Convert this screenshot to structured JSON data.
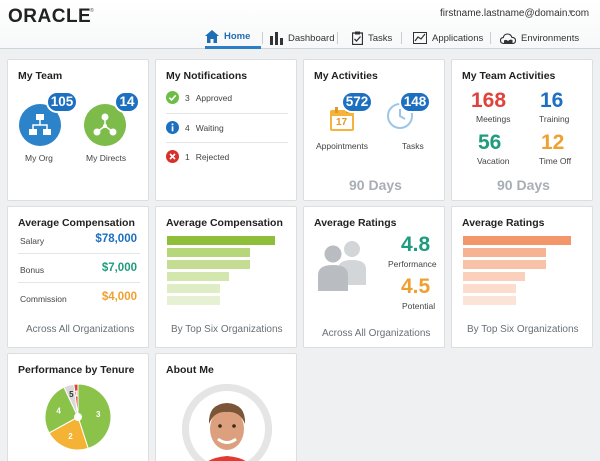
{
  "header": {
    "logo": "ORACLE",
    "logo_tm": "®",
    "user_email": "firstname.lastname@domain.com",
    "nav": [
      {
        "label": "Home",
        "icon": "home-icon",
        "active": true
      },
      {
        "label": "Dashboard",
        "icon": "bar-chart-icon",
        "active": false
      },
      {
        "label": "Tasks",
        "icon": "clipboard-icon",
        "active": false
      },
      {
        "label": "Applications",
        "icon": "chart-window-icon",
        "active": false
      },
      {
        "label": "Environments",
        "icon": "cloud-icon",
        "active": false
      }
    ]
  },
  "my_team": {
    "title": "My Team",
    "org_label": "My Org",
    "org_count": "105",
    "directs_label": "My Directs",
    "directs_count": "14"
  },
  "notifications": {
    "title": "My Notifications",
    "items": [
      {
        "count": "3",
        "label": "Approved",
        "status": "approved"
      },
      {
        "count": "4",
        "label": "Waiting",
        "status": "waiting"
      },
      {
        "count": "1",
        "label": "Rejected",
        "status": "rejected"
      }
    ]
  },
  "activities": {
    "title": "My Activities",
    "appointments_label": "Appointments",
    "appointments_count": "572",
    "calendar_day": "17",
    "tasks_label": "Tasks",
    "tasks_count": "148",
    "period": "90 Days"
  },
  "team_activities": {
    "title": "My Team Activities",
    "meetings": "168",
    "meetings_label": "Meetings",
    "training": "16",
    "training_label": "Training",
    "vacation": "56",
    "vacation_label": "Vacation",
    "timeoff": "12",
    "timeoff_label": "Time Off",
    "period": "90 Days"
  },
  "avg_comp_1": {
    "title": "Average Compensation",
    "rows": [
      {
        "label": "Salary",
        "value": "$78,000"
      },
      {
        "label": "Bonus",
        "value": "$7,000"
      },
      {
        "label": "Commission",
        "value": "$4,000"
      }
    ],
    "footer": "Across All Organizations"
  },
  "avg_comp_2": {
    "title": "Average Compensation",
    "bars": [
      1.0,
      0.77,
      0.77,
      0.57,
      0.49,
      0.49
    ],
    "footer": "By Top Six Organizations"
  },
  "avg_ratings_1": {
    "title": "Average Ratings",
    "performance": "4.8",
    "performance_label": "Performance",
    "potential": "4.5",
    "potential_label": "Potential",
    "footer": "Across All Organizations"
  },
  "avg_ratings_2": {
    "title": "Average Ratings",
    "bars": [
      1.0,
      0.77,
      0.77,
      0.57,
      0.49,
      0.49
    ],
    "footer": "By Top Six Organizations"
  },
  "tenure": {
    "title": "Performance by Tenure",
    "slices": [
      {
        "label": "3",
        "value": 45,
        "color": "#8bc34a"
      },
      {
        "label": "2",
        "value": 22,
        "color": "#f5b335"
      },
      {
        "label": "4",
        "value": 26,
        "color": "#8bc34a"
      },
      {
        "label": "5",
        "value": 5,
        "color": "#d9d9d9"
      },
      {
        "label": "1",
        "value": 2,
        "color": "#e0433b"
      }
    ]
  },
  "about": {
    "title": "About Me"
  },
  "colors": {
    "blue": "#1d6fc0",
    "red": "#e0433b",
    "teal": "#1f9c7d",
    "orange": "#f0a030",
    "green_bar": "#8fbe3a",
    "orange_bar": "#f3966a"
  }
}
